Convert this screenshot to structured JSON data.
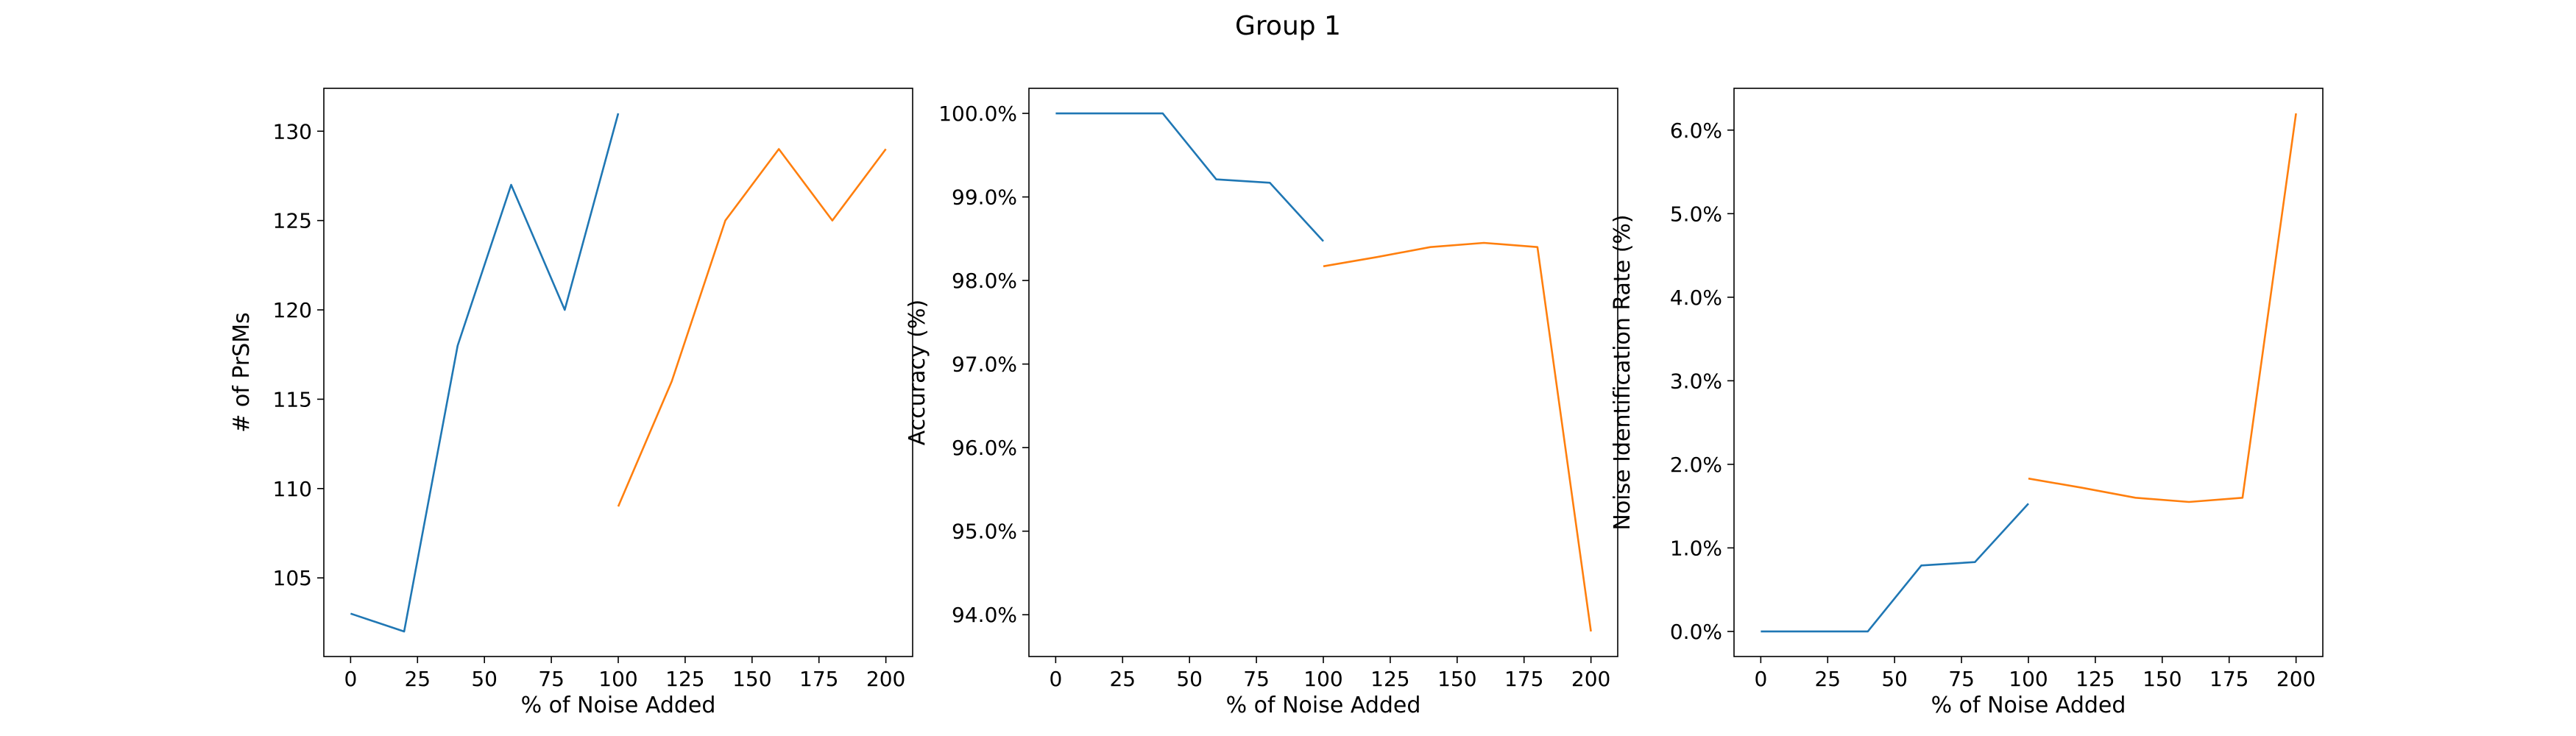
{
  "figure": {
    "title": "Group 1"
  },
  "colors": {
    "series_a": "#1f77b4",
    "series_b": "#ff7f0e",
    "axes": "#000000",
    "background": "#ffffff"
  },
  "chart_data": [
    {
      "type": "line",
      "xlabel": "% of Noise Added",
      "ylabel": "# of PrSMs",
      "xlim": [
        -10,
        210
      ],
      "ylim": [
        100.6,
        132.4
      ],
      "xticks": [
        0,
        25,
        50,
        75,
        100,
        125,
        150,
        175,
        200
      ],
      "xtick_labels": [
        "0",
        "25",
        "50",
        "75",
        "100",
        "125",
        "150",
        "175",
        "200"
      ],
      "yticks": [
        105,
        110,
        115,
        120,
        125,
        130
      ],
      "ytick_labels": [
        "105",
        "110",
        "115",
        "120",
        "125",
        "130"
      ],
      "grid": false,
      "series": [
        {
          "color": "#1f77b4",
          "x": [
            0,
            20,
            40,
            60,
            80,
            100
          ],
          "y": [
            103,
            102,
            118,
            127,
            120,
            131
          ]
        },
        {
          "color": "#ff7f0e",
          "x": [
            100,
            120,
            140,
            160,
            180,
            200
          ],
          "y": [
            109,
            116,
            125,
            129,
            125,
            129
          ]
        }
      ]
    },
    {
      "type": "line",
      "xlabel": "% of Noise Added",
      "ylabel": "Accuracy (%)",
      "xlim": [
        -10,
        210
      ],
      "ylim": [
        93.5,
        100.3
      ],
      "xticks": [
        0,
        25,
        50,
        75,
        100,
        125,
        150,
        175,
        200
      ],
      "xtick_labels": [
        "0",
        "25",
        "50",
        "75",
        "100",
        "125",
        "150",
        "175",
        "200"
      ],
      "yticks": [
        94,
        95,
        96,
        97,
        98,
        99,
        100
      ],
      "ytick_labels": [
        "94.0%",
        "95.0%",
        "96.0%",
        "97.0%",
        "98.0%",
        "99.0%",
        "100.0%"
      ],
      "grid": false,
      "series": [
        {
          "color": "#1f77b4",
          "x": [
            0,
            20,
            40,
            60,
            80,
            100
          ],
          "y": [
            100.0,
            100.0,
            100.0,
            99.21,
            99.17,
            98.47
          ]
        },
        {
          "color": "#ff7f0e",
          "x": [
            100,
            120,
            140,
            160,
            180,
            200
          ],
          "y": [
            98.17,
            98.28,
            98.4,
            98.45,
            98.4,
            93.8
          ]
        }
      ]
    },
    {
      "type": "line",
      "xlabel": "% of Noise Added",
      "ylabel": "Noise Identification Rate (%)",
      "xlim": [
        -10,
        210
      ],
      "ylim": [
        -0.3,
        6.5
      ],
      "xticks": [
        0,
        25,
        50,
        75,
        100,
        125,
        150,
        175,
        200
      ],
      "xtick_labels": [
        "0",
        "25",
        "50",
        "75",
        "100",
        "125",
        "150",
        "175",
        "200"
      ],
      "yticks": [
        0,
        1,
        2,
        3,
        4,
        5,
        6
      ],
      "ytick_labels": [
        "0.0%",
        "1.0%",
        "2.0%",
        "3.0%",
        "4.0%",
        "5.0%",
        "6.0%"
      ],
      "grid": false,
      "series": [
        {
          "color": "#1f77b4",
          "x": [
            0,
            20,
            40,
            60,
            80,
            100
          ],
          "y": [
            0.0,
            0.0,
            0.0,
            0.79,
            0.83,
            1.53
          ]
        },
        {
          "color": "#ff7f0e",
          "x": [
            100,
            120,
            140,
            160,
            180,
            200
          ],
          "y": [
            1.83,
            1.72,
            1.6,
            1.55,
            1.6,
            6.2
          ]
        }
      ]
    }
  ]
}
